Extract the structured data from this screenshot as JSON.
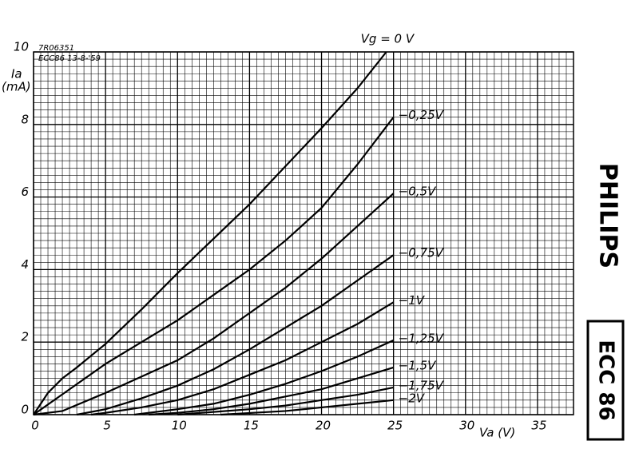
{
  "chart_data": {
    "type": "line",
    "annotations": [
      "7R06351",
      "ECC86 13-8-'59"
    ],
    "ylabel": [
      "Ia",
      "(mA)"
    ],
    "xlabel": "Va (V)",
    "brand": "PHILIPS",
    "tube": "ECC 86",
    "xlim": [
      0,
      37.5
    ],
    "ylim": [
      0,
      10
    ],
    "xticks": [
      0,
      5,
      10,
      15,
      20,
      25,
      30,
      35
    ],
    "yticks": [
      0,
      2,
      4,
      6,
      8,
      10
    ],
    "grid": true,
    "series": [
      {
        "name": "Vg = 0 V",
        "color": "#000000",
        "x": [
          0,
          1,
          2,
          3,
          5,
          7.5,
          10,
          12.5,
          15,
          17.5,
          20,
          22.5,
          24.5
        ],
        "values": [
          0,
          0.6,
          1.0,
          1.3,
          1.95,
          2.9,
          3.9,
          4.85,
          5.8,
          6.85,
          7.9,
          9.0,
          10
        ]
      },
      {
        "name": "−0,25V",
        "color": "#000000",
        "x": [
          0,
          2.5,
          5,
          7.5,
          10,
          12.5,
          15,
          17.5,
          20,
          22.5,
          25
        ],
        "values": [
          0,
          0.7,
          1.4,
          2.0,
          2.6,
          3.3,
          4.0,
          4.8,
          5.7,
          6.9,
          8.2
        ]
      },
      {
        "name": "−0,5V",
        "color": "#000000",
        "x": [
          0,
          2,
          5,
          7.5,
          10,
          12.5,
          15,
          17.5,
          20,
          22.5,
          25
        ],
        "values": [
          0,
          0.1,
          0.6,
          1.05,
          1.5,
          2.1,
          2.8,
          3.5,
          4.3,
          5.2,
          6.1
        ]
      },
      {
        "name": "−0,75V",
        "color": "#000000",
        "x": [
          3,
          5,
          7.5,
          10,
          12.5,
          15,
          17.5,
          20,
          22.5,
          25
        ],
        "values": [
          0,
          0.15,
          0.45,
          0.8,
          1.25,
          1.8,
          2.4,
          3.0,
          3.7,
          4.4
        ]
      },
      {
        "name": "−1V",
        "color": "#000000",
        "x": [
          4,
          5,
          7.5,
          10,
          12.5,
          15,
          17.5,
          20,
          22.5,
          25
        ],
        "values": [
          0,
          0.05,
          0.2,
          0.4,
          0.7,
          1.1,
          1.5,
          2.0,
          2.5,
          3.1
        ]
      },
      {
        "name": "−1,25V",
        "color": "#000000",
        "x": [
          7,
          10,
          12.5,
          15,
          17.5,
          20,
          22.5,
          25
        ],
        "values": [
          0,
          0.15,
          0.3,
          0.55,
          0.85,
          1.2,
          1.6,
          2.05
        ]
      },
      {
        "name": "−1,5V",
        "color": "#000000",
        "x": [
          8,
          10,
          12.5,
          15,
          17.5,
          20,
          22.5,
          25
        ],
        "values": [
          0,
          0.05,
          0.15,
          0.3,
          0.5,
          0.7,
          1.0,
          1.3
        ]
      },
      {
        "name": "−1,75V",
        "color": "#000000",
        "x": [
          10,
          15,
          17.5,
          20,
          22.5,
          25
        ],
        "values": [
          0,
          0.15,
          0.25,
          0.4,
          0.55,
          0.75
        ]
      },
      {
        "name": "−2V",
        "color": "#000000",
        "x": [
          13,
          17.5,
          20,
          22.5,
          25
        ],
        "values": [
          0,
          0.1,
          0.2,
          0.3,
          0.4
        ]
      }
    ]
  }
}
